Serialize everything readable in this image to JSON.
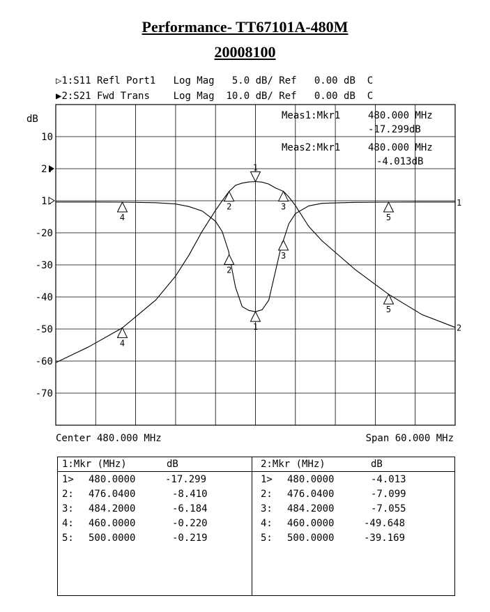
{
  "title": "Performance- TT67101A-480M",
  "subtitle": "20008100",
  "trace_headers": [
    {
      "symbol": "▷",
      "label": "1:S11 Refl Port1   Log Mag   5.0 dB/ Ref   0.00 dB  C"
    },
    {
      "symbol": "▶",
      "label": "2:S21 Fwd Trans    Log Mag  10.0 dB/ Ref   0.00 dB  C"
    }
  ],
  "measurements": [
    {
      "label": "Meas1:Mkr1",
      "freq": "480.000 MHz",
      "value": "-17.299dB"
    },
    {
      "label": "Meas2:Mkr1",
      "freq": "480.000 MHz",
      "value": "-4.013dB"
    }
  ],
  "footer": {
    "center": "Center 480.000 MHz",
    "span": "Span 60.000 MHz"
  },
  "chart_data": {
    "type": "line",
    "xlabel": "MHz",
    "ylabel": "dB",
    "xlim": [
      450,
      510
    ],
    "grid": true,
    "y_tick_labels": [
      "10",
      "2:",
      "1:",
      "-20",
      "-30",
      "-40",
      "-50",
      "-60",
      "-70"
    ],
    "x": [
      450,
      455,
      460,
      465,
      468,
      470,
      472,
      474,
      475,
      476,
      476.04,
      477,
      478,
      479,
      480,
      481,
      482,
      483,
      484,
      484.2,
      485,
      486,
      488,
      490,
      495,
      500,
      505,
      510
    ],
    "series": [
      {
        "name": "1:S11 Refl Port1",
        "scale_db_per_div": 5.0,
        "values": [
          -0.2,
          -0.2,
          -0.22,
          -0.3,
          -0.5,
          -0.9,
          -1.6,
          -3.2,
          -4.8,
          -8.0,
          -8.41,
          -13.5,
          -16.5,
          -17.1,
          -17.299,
          -17.0,
          -15.5,
          -11.0,
          -6.5,
          -6.184,
          -3.6,
          -2.0,
          -0.8,
          -0.4,
          -0.25,
          -0.219,
          -0.2,
          -0.2
        ]
      },
      {
        "name": "2:S21 Fwd Trans",
        "scale_db_per_div": 10.0,
        "values": [
          -60.5,
          -55.5,
          -49.648,
          -41.0,
          -33.5,
          -27.0,
          -19.5,
          -13.0,
          -10.0,
          -7.2,
          -7.099,
          -5.2,
          -4.5,
          -4.15,
          -4.013,
          -4.2,
          -4.8,
          -6.0,
          -6.9,
          -7.055,
          -8.8,
          -11.5,
          -18.0,
          -22.5,
          -31.5,
          -39.169,
          -45.5,
          -49.5
        ]
      }
    ],
    "markers": [
      {
        "trace": 1,
        "id": "1",
        "x": 480,
        "value": -17.299,
        "side": "below"
      },
      {
        "trace": 1,
        "id": "2",
        "x": 476.04,
        "value": -8.41,
        "side": "below"
      },
      {
        "trace": 1,
        "id": "3",
        "x": 484.2,
        "value": -6.184,
        "side": "below"
      },
      {
        "trace": 1,
        "id": "4",
        "x": 460,
        "value": -0.22,
        "side": "below"
      },
      {
        "trace": 1,
        "id": "5",
        "x": 500,
        "value": -0.219,
        "side": "below"
      },
      {
        "trace": 2,
        "id": "1",
        "x": 480,
        "value": -4.013,
        "side": "above"
      },
      {
        "trace": 2,
        "id": "2",
        "x": 476.04,
        "value": -7.099,
        "side": "below"
      },
      {
        "trace": 2,
        "id": "3",
        "x": 484.2,
        "value": -7.055,
        "side": "below"
      },
      {
        "trace": 2,
        "id": "4",
        "x": 460,
        "value": -49.648,
        "side": "below"
      },
      {
        "trace": 2,
        "id": "5",
        "x": 500,
        "value": -39.169,
        "side": "below"
      }
    ]
  },
  "marker_table": {
    "left_header": {
      "col1": "1:Mkr (MHz)",
      "col2": "dB"
    },
    "right_header": {
      "col1": "2:Mkr (MHz)",
      "col2": "dB"
    },
    "left_rows": [
      {
        "id": "1>",
        "freq": "480.0000",
        "db": "-17.299"
      },
      {
        "id": "2:",
        "freq": "476.0400",
        "db": "-8.410"
      },
      {
        "id": "3:",
        "freq": "484.2000",
        "db": "-6.184"
      },
      {
        "id": "4:",
        "freq": "460.0000",
        "db": "-0.220"
      },
      {
        "id": "5:",
        "freq": "500.0000",
        "db": "-0.219"
      }
    ],
    "right_rows": [
      {
        "id": "1>",
        "freq": "480.0000",
        "db": "-4.013"
      },
      {
        "id": "2:",
        "freq": "476.0400",
        "db": "-7.099"
      },
      {
        "id": "3:",
        "freq": "484.2000",
        "db": "-7.055"
      },
      {
        "id": "4:",
        "freq": "460.0000",
        "db": "-49.648"
      },
      {
        "id": "5:",
        "freq": "500.0000",
        "db": "-39.169"
      }
    ]
  }
}
